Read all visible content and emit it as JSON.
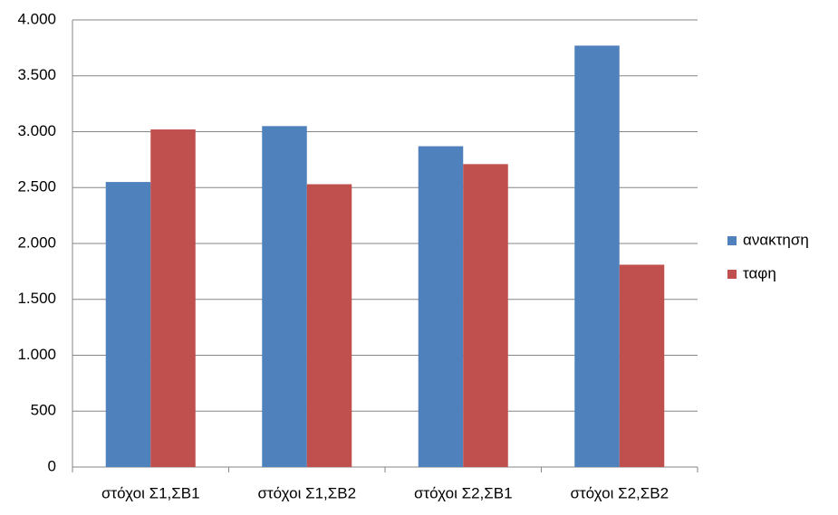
{
  "chart_data": {
    "type": "bar",
    "categories": [
      "στόχοι Σ1,ΣΒ1",
      "στόχοι Σ1,ΣΒ2",
      "στόχοι Σ2,ΣΒ1",
      "στόχοι Σ2,ΣΒ2"
    ],
    "series": [
      {
        "name": "ανακτηση",
        "color": "#4f81bd",
        "values": [
          2550,
          3050,
          2870,
          3770
        ]
      },
      {
        "name": "ταφη",
        "color": "#c0504d",
        "values": [
          3020,
          2530,
          2710,
          1810
        ]
      }
    ],
    "ylim": [
      0,
      4000
    ],
    "yticks": [
      0,
      500,
      {
        "value": 1000,
        "label": "1.000"
      },
      {
        "value": 1500,
        "label": "1.500"
      },
      {
        "value": 2000,
        "label": "2.000"
      },
      {
        "value": 2500,
        "label": "2.500"
      },
      {
        "value": 3000,
        "label": "3.000"
      },
      {
        "value": 3500,
        "label": "3.500"
      },
      {
        "value": 4000,
        "label": "4.000"
      }
    ],
    "grid": true,
    "legend": "right"
  }
}
